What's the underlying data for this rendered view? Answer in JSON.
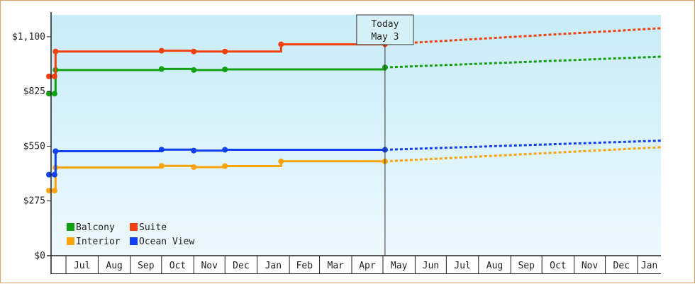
{
  "chart_data": {
    "type": "line",
    "title": "",
    "xlabel": "",
    "ylabel": "",
    "ylim": [
      0,
      1210
    ],
    "y_ticks": [
      {
        "value": 0,
        "label": "$0"
      },
      {
        "value": 275,
        "label": "$275"
      },
      {
        "value": 550,
        "label": "$550"
      },
      {
        "value": 825,
        "label": "$825"
      },
      {
        "value": 1100,
        "label": "$1,100"
      }
    ],
    "x_range": [
      "2023-06-01",
      "2024-01-31"
    ],
    "x_ticks": [
      "Jul",
      "Aug",
      "Sep",
      "Oct",
      "Nov",
      "Dec",
      "Jan",
      "Feb",
      "Mar",
      "Apr",
      "May",
      "Jun",
      "Jul",
      "Aug",
      "Sep",
      "Oct",
      "Nov",
      "Dec",
      "Jan"
    ],
    "x_tick_dates": [
      "2023-07-01",
      "2023-08-01",
      "2023-09-01",
      "2023-10-01",
      "2023-11-01",
      "2023-12-01",
      "2024-01-01",
      "2024-02-01",
      "2024-03-01",
      "2024-04-01",
      "2024-05-01",
      "2024-06-01",
      "2024-07-01",
      "2024-08-01",
      "2024-09-01",
      "2024-10-01",
      "2024-11-01",
      "2024-12-01",
      "2025-01-01"
    ],
    "today": {
      "date": "2024-05-03",
      "line1": "Today",
      "line2": "May 3"
    },
    "grid": false,
    "legend_position": "bottom-left",
    "series": [
      {
        "name": "Balcony",
        "color": "#11a011",
        "x": [
          "2023-06-01",
          "2023-06-20",
          "2023-06-21",
          "2023-10-01",
          "2023-11-01",
          "2023-12-01",
          "2024-05-03"
        ],
        "y": [
          814,
          814,
          933,
          938,
          933,
          936,
          946
        ],
        "forecast_x": [
          "2024-05-03",
          "2025-01-31"
        ],
        "forecast_y": [
          946,
          1000
        ]
      },
      {
        "name": "Suite",
        "color": "#f04010",
        "x": [
          "2023-06-01",
          "2023-06-20",
          "2023-06-21",
          "2023-10-01",
          "2023-11-01",
          "2023-12-01",
          "2024-01-24",
          "2024-05-03"
        ],
        "y": [
          901,
          901,
          1026,
          1030,
          1026,
          1026,
          1062,
          1062
        ],
        "forecast_x": [
          "2024-05-03",
          "2025-01-31"
        ],
        "forecast_y": [
          1062,
          1143
        ]
      },
      {
        "name": "Interior",
        "color": "#f8a30a",
        "x": [
          "2023-06-01",
          "2023-06-20",
          "2023-06-21",
          "2023-10-01",
          "2023-11-01",
          "2023-12-01",
          "2024-01-24",
          "2024-05-03"
        ],
        "y": [
          327,
          327,
          443,
          451,
          445,
          450,
          474,
          474
        ],
        "forecast_x": [
          "2024-05-03",
          "2025-01-31"
        ],
        "forecast_y": [
          474,
          545
        ]
      },
      {
        "name": "Ocean View",
        "color": "#1040f0",
        "x": [
          "2023-06-01",
          "2023-06-20",
          "2023-06-21",
          "2023-10-01",
          "2023-11-01",
          "2023-12-01",
          "2024-05-03"
        ],
        "y": [
          407,
          407,
          525,
          533,
          528,
          532,
          532
        ],
        "forecast_x": [
          "2024-05-03",
          "2025-01-31"
        ],
        "forecast_y": [
          532,
          578
        ]
      }
    ],
    "legend_order": [
      "Balcony",
      "Suite",
      "Interior",
      "Ocean View"
    ]
  }
}
